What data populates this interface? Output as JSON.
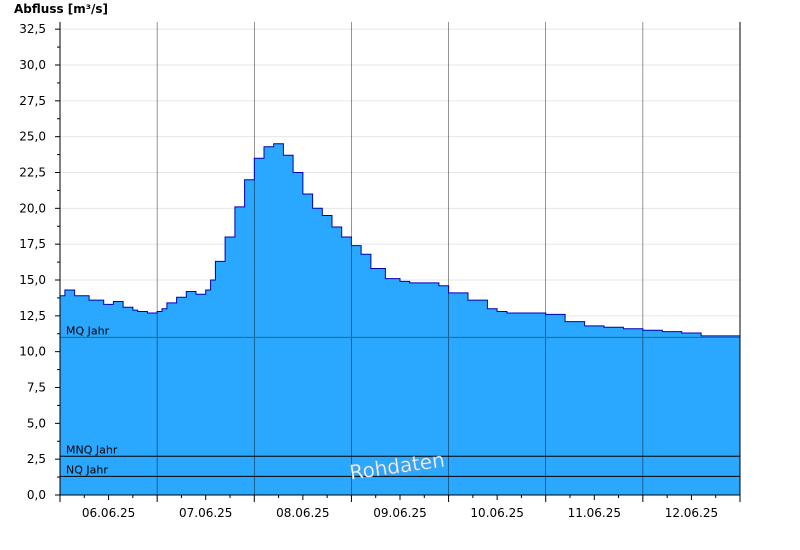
{
  "chart_data": {
    "type": "area",
    "ylabel": "Abfluss [m³/s]",
    "ylim": [
      0,
      33
    ],
    "yticks": [
      "0,0",
      "2,5",
      "5,0",
      "7,5",
      "10,0",
      "12,5",
      "15,0",
      "17,5",
      "20,0",
      "22,5",
      "25,0",
      "27,5",
      "30,0",
      "32,5"
    ],
    "xlim": [
      0,
      7
    ],
    "day_ticks": [
      "06.06.25",
      "07.06.25",
      "08.06.25",
      "09.06.25",
      "10.06.25",
      "11.06.25",
      "12.06.25"
    ],
    "grid": true,
    "colors": {
      "fill": "#2aa7ff",
      "line": "#0000b4",
      "mq_line": "#1f7a3c",
      "ref_line": "#000000",
      "grid": "#e6e6e6",
      "day_line": "#000000"
    },
    "series": [
      {
        "x": [
          0.0,
          0.05,
          0.15,
          0.3,
          0.45,
          0.55,
          0.65,
          0.75,
          0.8,
          0.9,
          1.0,
          1.05,
          1.1,
          1.2,
          1.3,
          1.4,
          1.5,
          1.55,
          1.6,
          1.7,
          1.8,
          1.9,
          2.0,
          2.1,
          2.2,
          2.3,
          2.4,
          2.5,
          2.6,
          2.7,
          2.8,
          2.9,
          3.0,
          3.1,
          3.2,
          3.35,
          3.5,
          3.6,
          3.75,
          3.9,
          4.0,
          4.2,
          4.4,
          4.5,
          4.6,
          4.8,
          5.0,
          5.2,
          5.4,
          5.6,
          5.8,
          6.0,
          6.2,
          6.4,
          6.6,
          6.8,
          7.0
        ],
        "y": [
          13.9,
          14.3,
          13.9,
          13.6,
          13.3,
          13.5,
          13.1,
          12.9,
          12.8,
          12.7,
          12.8,
          13.0,
          13.4,
          13.8,
          14.2,
          14.0,
          14.3,
          15.0,
          16.3,
          18.0,
          20.1,
          22.0,
          23.5,
          24.3,
          24.5,
          23.7,
          22.5,
          21.0,
          20.0,
          19.5,
          18.7,
          18.0,
          17.4,
          16.8,
          15.8,
          15.1,
          14.9,
          14.8,
          14.8,
          14.6,
          14.1,
          13.6,
          13.0,
          12.8,
          12.7,
          12.7,
          12.6,
          12.1,
          11.8,
          11.7,
          11.6,
          11.5,
          11.4,
          11.3,
          11.1,
          11.1,
          11.1
        ]
      }
    ],
    "reference_lines": [
      {
        "label": "MQ Jahr",
        "value": 11.0
      },
      {
        "label": "MNQ Jahr",
        "value": 2.7
      },
      {
        "label": "NQ Jahr",
        "value": 1.3
      }
    ],
    "watermark": "Rohdaten"
  }
}
